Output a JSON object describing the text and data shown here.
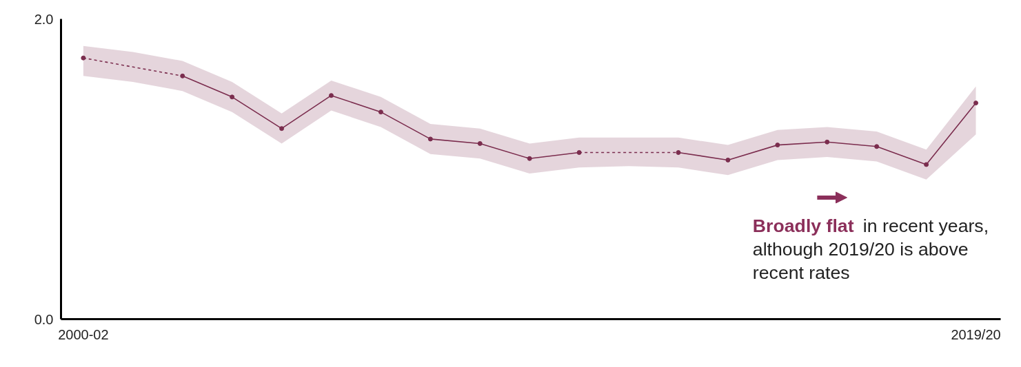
{
  "chart_data": {
    "type": "line",
    "categories": [
      "2000-02",
      null,
      null,
      null,
      null,
      null,
      null,
      null,
      null,
      null,
      null,
      null,
      null,
      null,
      null,
      null,
      null,
      null,
      "2019/20"
    ],
    "series": [
      {
        "color": "#7b2d4e",
        "values": [
          1.74,
          null,
          1.62,
          1.48,
          1.27,
          1.49,
          1.38,
          1.2,
          1.17,
          1.07,
          1.11,
          null,
          1.11,
          1.06,
          1.16,
          1.18,
          1.15,
          1.03,
          1.44
        ],
        "lower": [
          1.62,
          1.58,
          1.52,
          1.38,
          1.17,
          1.39,
          1.28,
          1.1,
          1.07,
          0.97,
          1.01,
          1.02,
          1.01,
          0.96,
          1.06,
          1.08,
          1.05,
          0.93,
          1.23
        ],
        "upper": [
          1.82,
          1.78,
          1.72,
          1.58,
          1.37,
          1.59,
          1.48,
          1.3,
          1.27,
          1.17,
          1.21,
          1.21,
          1.21,
          1.16,
          1.26,
          1.28,
          1.25,
          1.13,
          1.55
        ]
      }
    ],
    "ylim": [
      0,
      2
    ],
    "yticks": [
      {
        "value": 0,
        "label": "0.0"
      },
      {
        "value": 2,
        "label": "2.0"
      }
    ],
    "marker": "circle",
    "line_style": "solid",
    "grid": false,
    "annotations": [
      "Broadly flat",
      "in recent years, although 2019/20 is above recent rates"
    ]
  }
}
